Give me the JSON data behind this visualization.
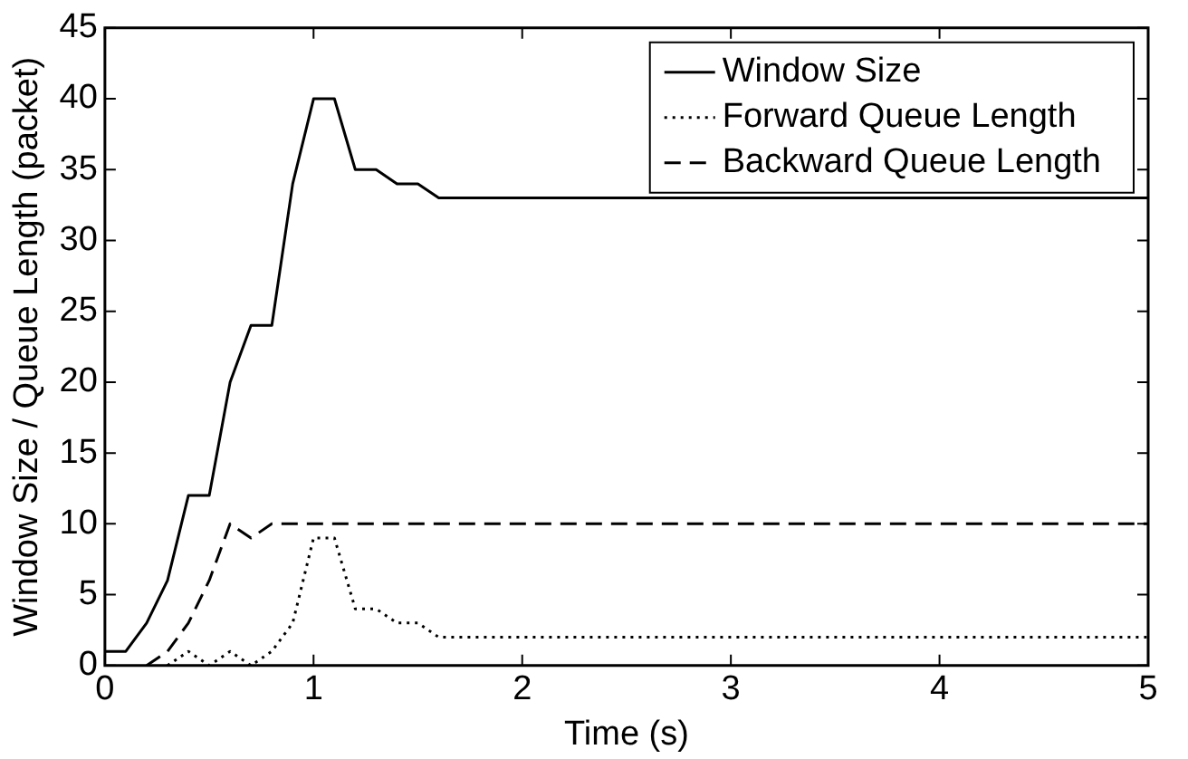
{
  "chart_data": {
    "type": "line",
    "xlabel": "Time (s)",
    "ylabel": "Window Size / Queue Length (packet)",
    "xlim": [
      0,
      5
    ],
    "xticks": [
      0,
      1,
      2,
      3,
      4,
      5
    ],
    "ylim": [
      0,
      45
    ],
    "yticks": [
      0,
      5,
      10,
      15,
      20,
      25,
      30,
      35,
      40,
      45
    ],
    "grid": false,
    "legend": "top right",
    "marker": "none",
    "series": [
      {
        "name": "Window Size",
        "color": "#000000",
        "line_style": "solid",
        "x": [
          0,
          0.1,
          0.2,
          0.3,
          0.4,
          0.5,
          0.6,
          0.7,
          0.8,
          0.9,
          1.0,
          1.1,
          1.2,
          1.3,
          1.4,
          1.5,
          1.6,
          5
        ],
        "values": [
          1,
          1,
          3,
          6,
          12,
          12,
          20,
          24,
          24,
          34,
          40,
          40,
          35,
          35,
          34,
          34,
          33,
          33
        ]
      },
      {
        "name": "Forward Queue Length",
        "color": "#000000",
        "line_style": "dotted",
        "x": [
          0.3,
          0.4,
          0.5,
          0.6,
          0.7,
          0.8,
          0.9,
          1.0,
          1.1,
          1.2,
          1.3,
          1.4,
          1.5,
          1.6,
          5
        ],
        "values": [
          0,
          1,
          0,
          1,
          0,
          1,
          3,
          9,
          9,
          4,
          4,
          3,
          3,
          2,
          2
        ]
      },
      {
        "name": "Backward Queue Length",
        "color": "#000000",
        "line_style": "dashed",
        "x": [
          0.2,
          0.3,
          0.4,
          0.5,
          0.6,
          0.7,
          0.8,
          5
        ],
        "values": [
          0,
          1,
          3,
          6,
          10,
          9,
          10,
          10
        ]
      }
    ]
  }
}
